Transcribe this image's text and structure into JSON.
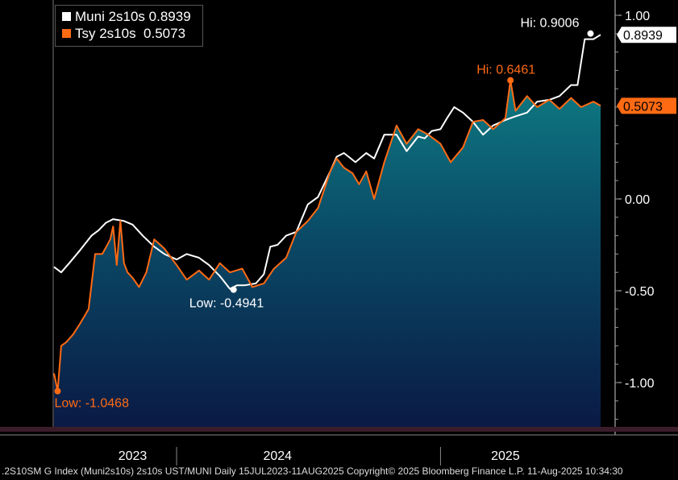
{
  "chart_data": {
    "type": "area",
    "title": "",
    "xlabel": "",
    "ylabel": "",
    "x_ticks": [
      "2023",
      "2024",
      "2025"
    ],
    "y_ticks": [
      "1.00",
      "0.50",
      "0.00",
      "-0.50",
      "-1.00"
    ],
    "ylim": [
      -1.25,
      1.08
    ],
    "grid": false,
    "legend_position": "top-left",
    "series": [
      {
        "name": "Muni 2s10s",
        "last_value": "0.8939",
        "color": "#ffffff",
        "x": [
          "2023-07-15",
          "2023-07-25",
          "2023-08-05",
          "2023-08-20",
          "2023-09-05",
          "2023-09-15",
          "2023-09-25",
          "2023-10-05",
          "2023-10-20",
          "2023-11-01",
          "2023-11-15",
          "2023-12-01",
          "2023-12-15",
          "2024-01-01",
          "2024-01-15",
          "2024-02-01",
          "2024-02-15",
          "2024-03-01",
          "2024-03-15",
          "2024-03-25",
          "2024-04-05",
          "2024-04-20",
          "2024-05-01",
          "2024-05-10",
          "2024-05-20",
          "2024-06-01",
          "2024-06-15",
          "2024-07-01",
          "2024-07-15",
          "2024-08-01",
          "2024-08-10",
          "2024-08-20",
          "2024-09-05",
          "2024-09-20",
          "2024-10-01",
          "2024-10-15",
          "2024-11-01",
          "2024-11-15",
          "2024-12-01",
          "2024-12-10",
          "2024-12-20",
          "2025-01-01",
          "2025-01-10",
          "2025-01-20",
          "2025-02-01",
          "2025-02-15",
          "2025-03-01",
          "2025-03-15",
          "2025-04-01",
          "2025-04-15",
          "2025-05-01",
          "2025-05-15",
          "2025-06-01",
          "2025-06-15",
          "2025-07-01",
          "2025-07-10",
          "2025-07-20",
          "2025-08-01",
          "2025-08-11"
        ],
        "y": [
          -0.37,
          -0.4,
          -0.35,
          -0.28,
          -0.2,
          -0.17,
          -0.13,
          -0.11,
          -0.12,
          -0.14,
          -0.2,
          -0.26,
          -0.3,
          -0.33,
          -0.3,
          -0.32,
          -0.36,
          -0.42,
          -0.49,
          -0.47,
          -0.47,
          -0.46,
          -0.41,
          -0.26,
          -0.25,
          -0.2,
          -0.18,
          -0.03,
          0.01,
          0.15,
          0.23,
          0.25,
          0.2,
          0.25,
          0.22,
          0.35,
          0.35,
          0.26,
          0.34,
          0.33,
          0.37,
          0.38,
          0.44,
          0.5,
          0.47,
          0.42,
          0.35,
          0.4,
          0.43,
          0.45,
          0.47,
          0.53,
          0.54,
          0.56,
          0.62,
          0.62,
          0.87,
          0.87,
          0.8939
        ]
      },
      {
        "name": "Tsy 2s10s",
        "last_value": "0.5073",
        "color": "#ff6a13",
        "x": [
          "2023-07-15",
          "2023-07-20",
          "2023-07-25",
          "2023-08-01",
          "2023-08-10",
          "2023-08-20",
          "2023-09-01",
          "2023-09-10",
          "2023-09-20",
          "2023-10-01",
          "2023-10-05",
          "2023-10-10",
          "2023-10-15",
          "2023-10-20",
          "2023-10-25",
          "2023-11-01",
          "2023-11-10",
          "2023-11-20",
          "2023-12-01",
          "2023-12-15",
          "2024-01-01",
          "2024-01-15",
          "2024-02-01",
          "2024-02-15",
          "2024-03-01",
          "2024-03-15",
          "2024-04-01",
          "2024-04-15",
          "2024-05-01",
          "2024-05-15",
          "2024-06-01",
          "2024-06-15",
          "2024-07-01",
          "2024-07-15",
          "2024-08-01",
          "2024-08-10",
          "2024-08-20",
          "2024-09-01",
          "2024-09-10",
          "2024-09-20",
          "2024-10-01",
          "2024-10-15",
          "2024-11-01",
          "2024-11-15",
          "2024-12-01",
          "2024-12-15",
          "2025-01-01",
          "2025-01-15",
          "2025-02-01",
          "2025-02-15",
          "2025-03-01",
          "2025-03-15",
          "2025-04-01",
          "2025-04-08",
          "2025-04-15",
          "2025-05-01",
          "2025-05-15",
          "2025-06-01",
          "2025-06-15",
          "2025-07-01",
          "2025-07-15",
          "2025-08-01",
          "2025-08-11"
        ],
        "y": [
          -0.95,
          -1.0468,
          -0.8,
          -0.78,
          -0.74,
          -0.68,
          -0.6,
          -0.3,
          -0.3,
          -0.22,
          -0.15,
          -0.36,
          -0.12,
          -0.35,
          -0.4,
          -0.43,
          -0.48,
          -0.4,
          -0.22,
          -0.27,
          -0.36,
          -0.44,
          -0.39,
          -0.44,
          -0.35,
          -0.4,
          -0.38,
          -0.48,
          -0.46,
          -0.38,
          -0.32,
          -0.18,
          -0.12,
          -0.05,
          0.15,
          0.22,
          0.17,
          0.14,
          0.08,
          0.15,
          0.0,
          0.2,
          0.4,
          0.3,
          0.38,
          0.35,
          0.3,
          0.2,
          0.28,
          0.42,
          0.43,
          0.38,
          0.44,
          0.6461,
          0.48,
          0.56,
          0.5,
          0.54,
          0.49,
          0.55,
          0.5,
          0.53,
          0.5073
        ]
      }
    ],
    "annotations": [
      {
        "text": "Hi: 0.9006",
        "series": "Muni 2s10s",
        "x": "2025-07-28",
        "y": 0.9006
      },
      {
        "text": "Low: -0.4941",
        "series": "Muni 2s10s",
        "x": "2024-03-20",
        "y": -0.4941
      },
      {
        "text": "Hi: 0.6461",
        "series": "Tsy 2s10s",
        "x": "2025-04-08",
        "y": 0.6461
      },
      {
        "text": "Low: -1.0468",
        "series": "Tsy 2s10s",
        "x": "2023-07-20",
        "y": -1.0468
      }
    ]
  },
  "legend": {
    "items": [
      {
        "label": "Muni 2s10s",
        "value": "0.8939",
        "color": "#ffffff"
      },
      {
        "label": "Tsy 2s10s",
        "value": "0.5073",
        "color": "#ff6a13"
      }
    ]
  },
  "footer": {
    "text": ".2S10SM G Index (Muni2s10s) 2s10s UST/MUNI  Daily 15JUL2023-11AUG2025 Copyright© 2025 Bloomberg Finance L.P. 11-Aug-2025 10:34:30"
  }
}
